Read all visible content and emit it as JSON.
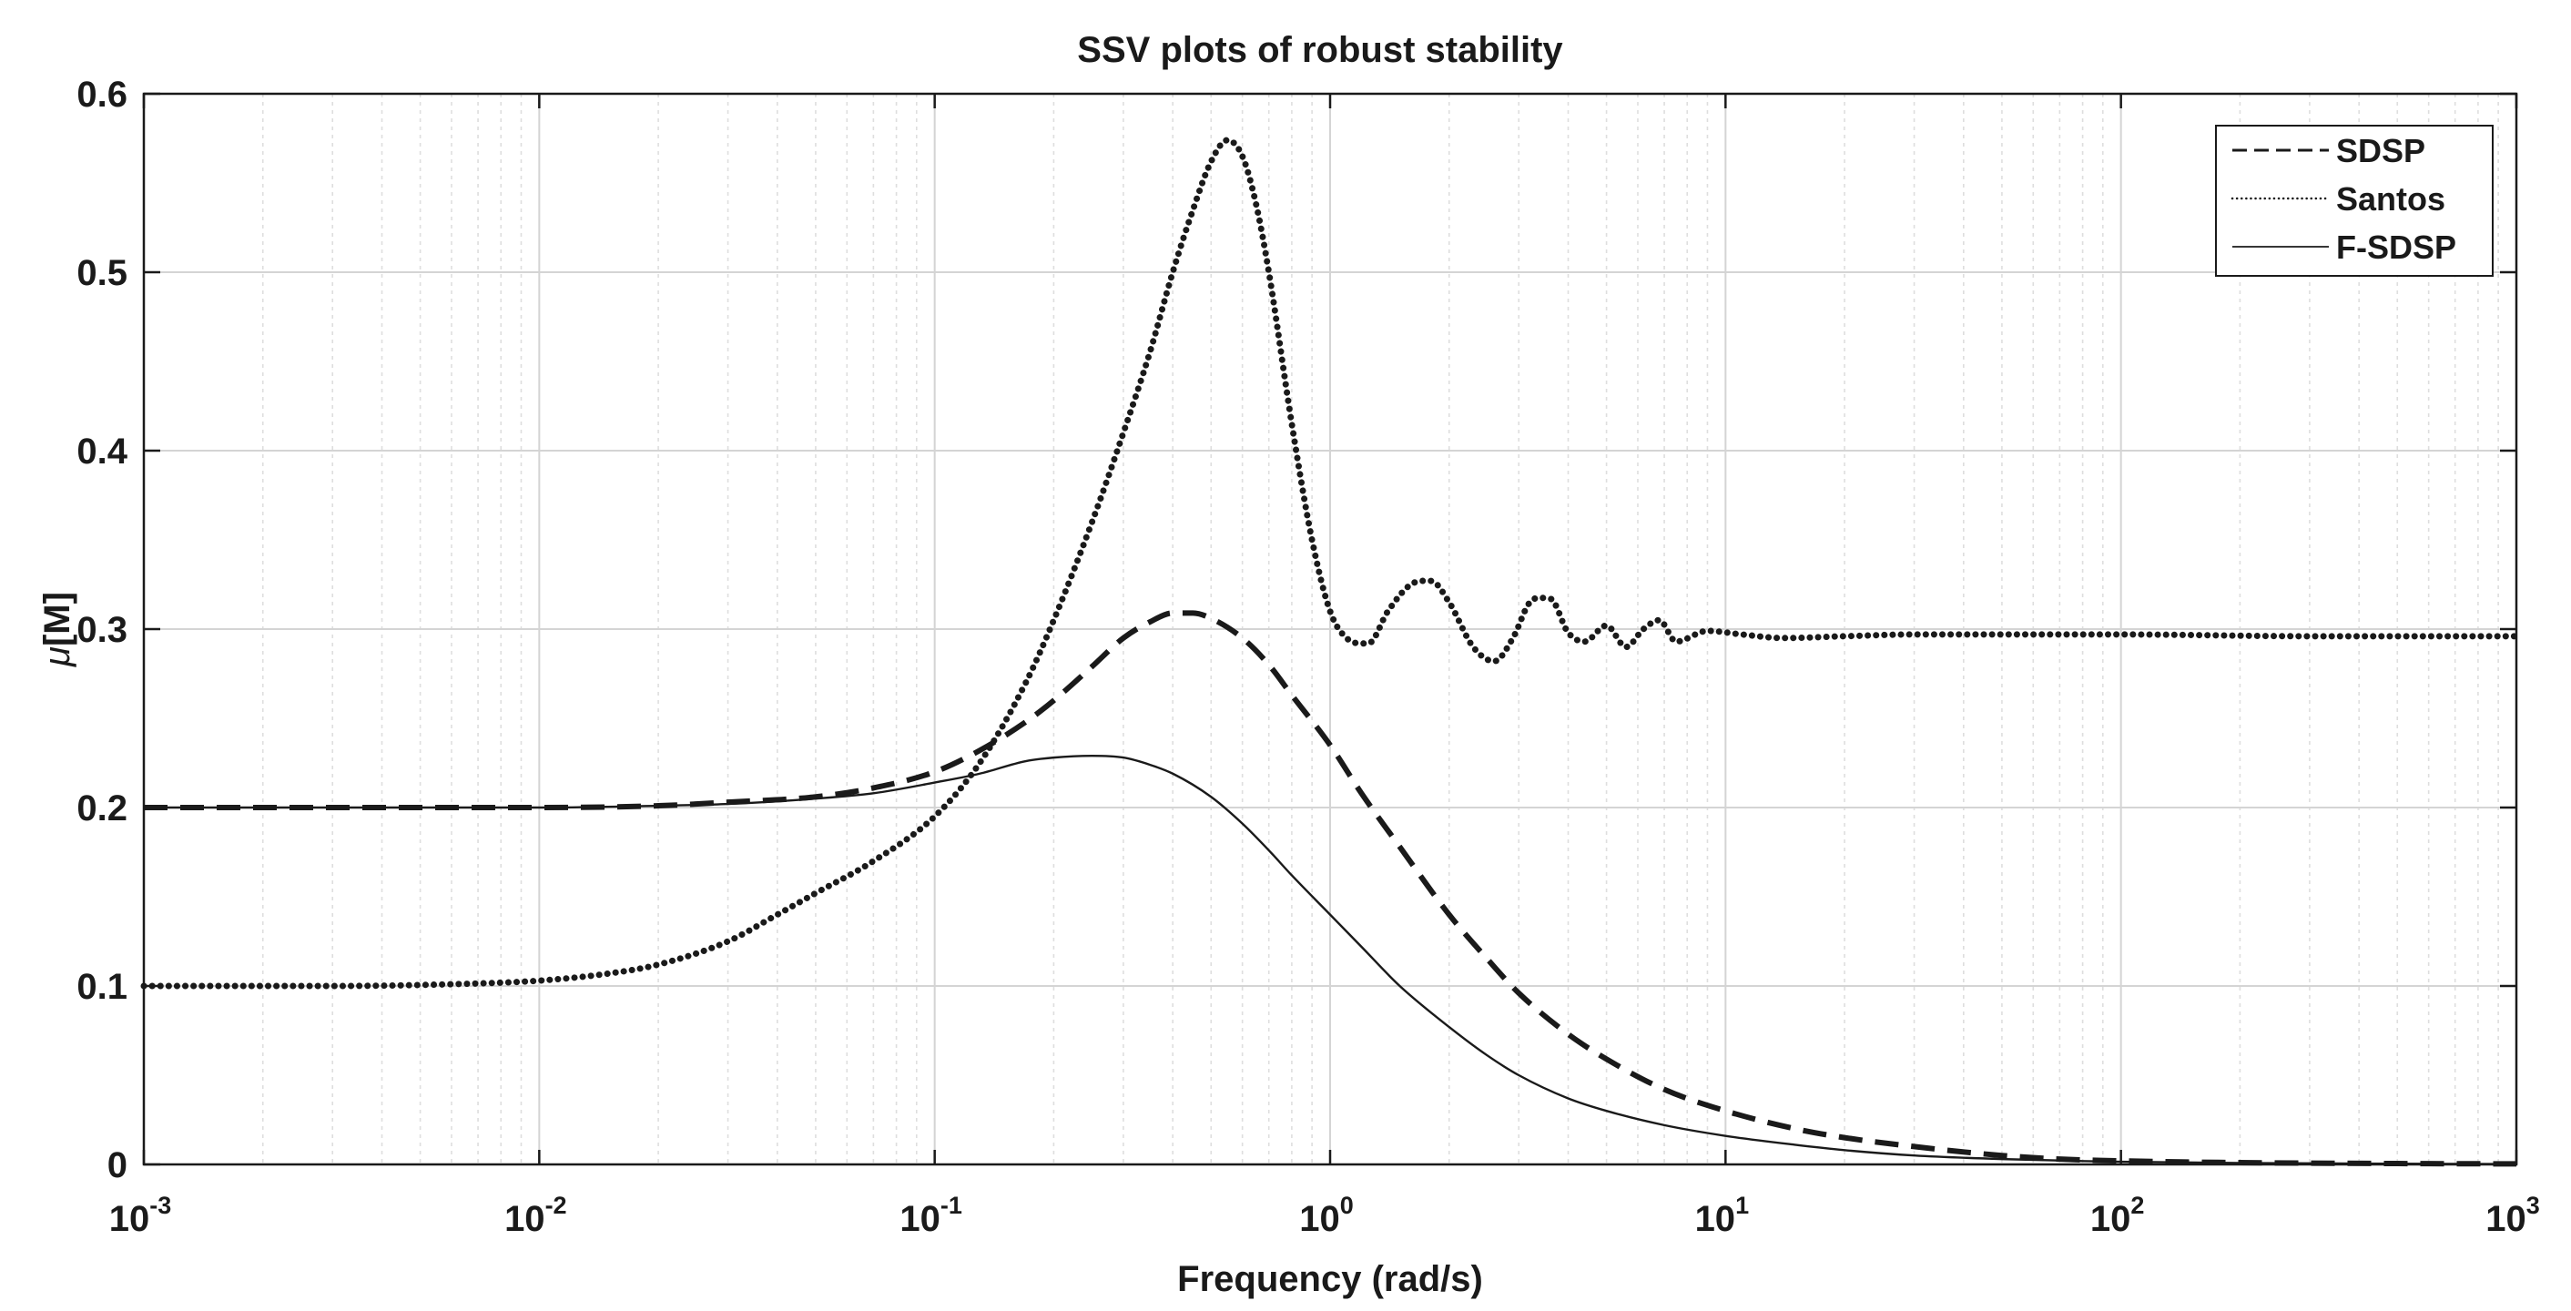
{
  "chart_data": {
    "type": "line",
    "title": "SSV plots of robust stability",
    "xlabel": "Frequency  (rad/s)",
    "ylabel_symbol": "μ",
    "ylabel_text": "[M]",
    "xscale": "log",
    "xlim": [
      0.001,
      1000
    ],
    "ylim": [
      0,
      0.6
    ],
    "grid": true,
    "legend_position": "top-right",
    "x_ticks": [
      {
        "base": "10",
        "exp": "-3",
        "value": 0.001
      },
      {
        "base": "10",
        "exp": "-2",
        "value": 0.01
      },
      {
        "base": "10",
        "exp": "-1",
        "value": 0.1
      },
      {
        "base": "10",
        "exp": "0",
        "value": 1
      },
      {
        "base": "10",
        "exp": "1",
        "value": 10
      },
      {
        "base": "10",
        "exp": "2",
        "value": 100
      },
      {
        "base": "10",
        "exp": "3",
        "value": 1000
      }
    ],
    "y_ticks": [
      {
        "label": "0",
        "value": 0
      },
      {
        "label": "0.1",
        "value": 0.1
      },
      {
        "label": "0.2",
        "value": 0.2
      },
      {
        "label": "0.3",
        "value": 0.3
      },
      {
        "label": "0.4",
        "value": 0.4
      },
      {
        "label": "0.5",
        "value": 0.5
      },
      {
        "label": "0.6",
        "value": 0.6
      }
    ],
    "series": [
      {
        "name": "SDSP",
        "style": "dashed",
        "color": "#1a1a1a",
        "x": [
          0.001,
          0.003,
          0.01,
          0.02,
          0.03,
          0.05,
          0.07,
          0.1,
          0.13,
          0.17,
          0.2,
          0.25,
          0.3,
          0.35,
          0.4,
          0.45,
          0.5,
          0.6,
          0.7,
          0.8,
          1.0,
          1.2,
          1.5,
          2.0,
          2.5,
          3.0,
          4.0,
          5.0,
          7.0,
          10,
          15,
          20,
          30,
          50,
          70,
          100,
          200,
          500,
          1000
        ],
        "y": [
          0.2,
          0.2,
          0.2,
          0.201,
          0.203,
          0.206,
          0.211,
          0.22,
          0.232,
          0.248,
          0.26,
          0.279,
          0.295,
          0.304,
          0.309,
          0.309,
          0.306,
          0.295,
          0.28,
          0.263,
          0.235,
          0.208,
          0.178,
          0.14,
          0.115,
          0.096,
          0.073,
          0.059,
          0.042,
          0.03,
          0.02,
          0.015,
          0.01,
          0.005,
          0.003,
          0.002,
          0.001,
          0.0005,
          0.0003
        ]
      },
      {
        "name": "Santos",
        "style": "dotted",
        "color": "#1a1a1a",
        "x": [
          0.001,
          0.003,
          0.006,
          0.01,
          0.015,
          0.02,
          0.03,
          0.04,
          0.05,
          0.07,
          0.1,
          0.13,
          0.17,
          0.2,
          0.25,
          0.3,
          0.35,
          0.4,
          0.45,
          0.5,
          0.55,
          0.6,
          0.65,
          0.7,
          0.8,
          0.9,
          1.0,
          1.1,
          1.25,
          1.4,
          1.6,
          1.8,
          2.0,
          2.3,
          2.6,
          2.9,
          3.2,
          3.6,
          4.0,
          4.4,
          5.0,
          5.6,
          6.2,
          6.8,
          7.5,
          9,
          11,
          14,
          20,
          30,
          50,
          100,
          300,
          1000
        ],
        "y": [
          0.1,
          0.1,
          0.101,
          0.103,
          0.107,
          0.112,
          0.125,
          0.14,
          0.152,
          0.17,
          0.195,
          0.225,
          0.27,
          0.305,
          0.36,
          0.41,
          0.455,
          0.5,
          0.535,
          0.562,
          0.574,
          0.565,
          0.538,
          0.5,
          0.415,
          0.35,
          0.31,
          0.295,
          0.292,
          0.31,
          0.325,
          0.327,
          0.315,
          0.29,
          0.282,
          0.295,
          0.315,
          0.317,
          0.298,
          0.293,
          0.302,
          0.29,
          0.3,
          0.305,
          0.293,
          0.299,
          0.297,
          0.295,
          0.296,
          0.297,
          0.297,
          0.297,
          0.296,
          0.296
        ]
      },
      {
        "name": "F-SDSP",
        "style": "solid",
        "color": "#1a1a1a",
        "x": [
          0.001,
          0.003,
          0.01,
          0.02,
          0.03,
          0.05,
          0.07,
          0.1,
          0.13,
          0.17,
          0.2,
          0.25,
          0.3,
          0.35,
          0.4,
          0.5,
          0.6,
          0.7,
          0.8,
          1.0,
          1.2,
          1.5,
          2.0,
          2.5,
          3.0,
          4.0,
          5.0,
          7.0,
          10,
          15,
          20,
          30,
          50,
          100,
          200,
          500,
          1000
        ],
        "y": [
          0.2,
          0.2,
          0.2,
          0.201,
          0.202,
          0.205,
          0.208,
          0.214,
          0.219,
          0.226,
          0.228,
          0.229,
          0.228,
          0.224,
          0.219,
          0.206,
          0.191,
          0.176,
          0.162,
          0.14,
          0.122,
          0.1,
          0.077,
          0.061,
          0.05,
          0.037,
          0.03,
          0.022,
          0.016,
          0.011,
          0.008,
          0.005,
          0.003,
          0.0015,
          0.0008,
          0.0004,
          0.0002
        ]
      }
    ]
  }
}
